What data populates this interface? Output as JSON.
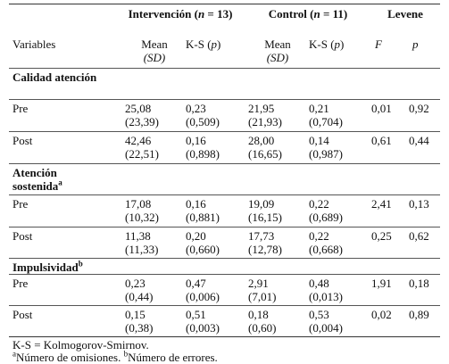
{
  "header": {
    "group1": "Intervención (",
    "group1_n": "n",
    "group1_rest": " = 13)",
    "group2": "Control (",
    "group2_n": "n",
    "group2_rest": " = 11)",
    "group3": "Levene"
  },
  "subheader": {
    "variables": "Variables",
    "mean": "Mean",
    "sd": "(SD)",
    "ks": "K-S (",
    "ks_p": "p",
    "ks_close": ")",
    "f": "F",
    "p": "p"
  },
  "sections": [
    {
      "title": "Calidad atención",
      "title_line2": "",
      "sup": "",
      "rows": [
        {
          "label": "Pre",
          "m1": "25,08",
          "sd1": "(23,39)",
          "ks1": "0,23",
          "ksp1": "(0,509)",
          "m2": "21,95",
          "sd2": "(21,93)",
          "ks2": "0,21",
          "ksp2": "(0,704)",
          "f": "0,01",
          "p": "0,92"
        },
        {
          "label": "Post",
          "m1": "42,46",
          "sd1": "(22,51)",
          "ks1": "0,16",
          "ksp1": "(0,898)",
          "m2": "28,00",
          "sd2": "(16,65)",
          "ks2": "0,14",
          "ksp2": "(0,987)",
          "f": "0,61",
          "p": "0,44"
        }
      ]
    },
    {
      "title": "Atención",
      "title_line2": "sostenida",
      "sup": "a",
      "rows": [
        {
          "label": "Pre",
          "m1": "17,08",
          "sd1": "(10,32)",
          "ks1": "0,16",
          "ksp1": "(0,881)",
          "m2": "19,09",
          "sd2": "(16,15)",
          "ks2": "0,22",
          "ksp2": "(0,689)",
          "f": "2,41",
          "p": "0,13"
        },
        {
          "label": "Post",
          "m1": "11,38",
          "sd1": "(11,33)",
          "ks1": "0,20",
          "ksp1": "(0,660)",
          "m2": "17,73",
          "sd2": "(12,78)",
          "ks2": "0,22",
          "ksp2": "(0,668)",
          "f": "0,25",
          "p": "0,62"
        }
      ]
    },
    {
      "title": "Impulsividad",
      "title_line2": "",
      "sup": "b",
      "rows": [
        {
          "label": "Pre",
          "m1": "0,23",
          "sd1": "(0,44)",
          "ks1": "0,47",
          "ksp1": "(0,006)",
          "m2": "2,91",
          "sd2": "(7,01)",
          "ks2": "0,48",
          "ksp2": "(0,013)",
          "f": "1,91",
          "p": "0,18"
        },
        {
          "label": "Post",
          "m1": "0,15",
          "sd1": "(0,38)",
          "ks1": "0,51",
          "ksp1": "(0,003)",
          "m2": "0,18",
          "sd2": "(0,60)",
          "ks2": "0,53",
          "ksp2": "(0,004)",
          "f": "0,02",
          "p": "0,89"
        }
      ]
    }
  ],
  "footnotes": {
    "line1": "K-S = Kolmogorov-Smirnov.",
    "a_sup": "a",
    "a_text": "Número de omisiones. ",
    "b_sup": "b",
    "b_text": "Número de errores."
  }
}
